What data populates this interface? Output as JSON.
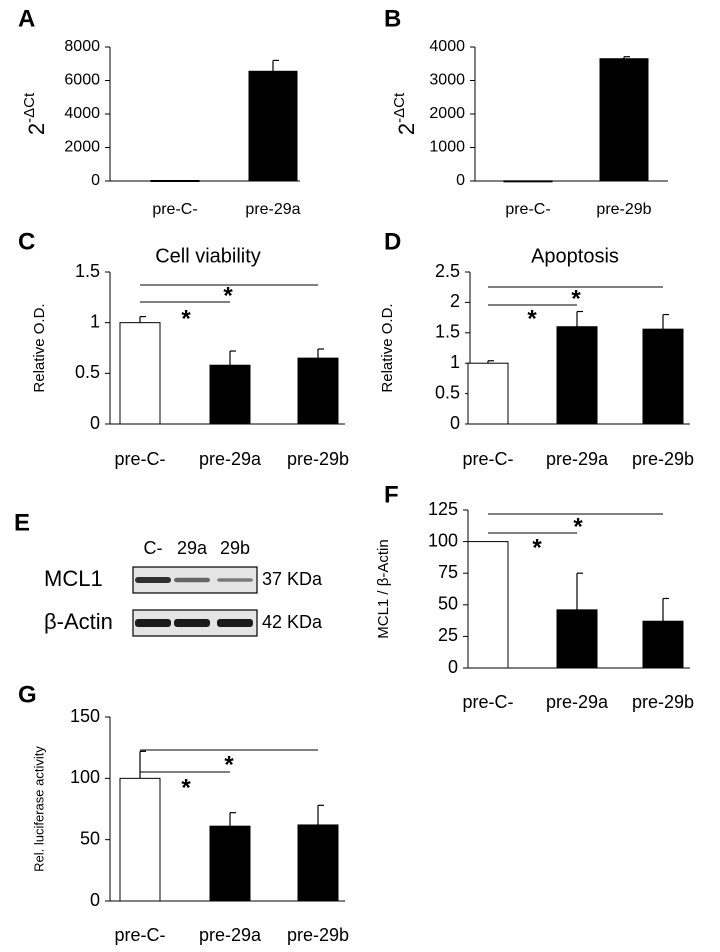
{
  "chart_data": [
    {
      "type": "bar",
      "panel_label": "A",
      "ylabel": "2",
      "ylabel_superscript": "-ΔCt",
      "categories": [
        "pre-C-",
        "pre-29a"
      ],
      "values": [
        30,
        6550
      ],
      "errors": [
        0,
        650
      ],
      "colors": [
        "#000000",
        "#000000"
      ],
      "ylim": [
        0,
        8000
      ],
      "yticks": [
        0,
        2000,
        4000,
        6000,
        8000
      ]
    },
    {
      "type": "bar",
      "panel_label": "B",
      "ylabel": "2",
      "ylabel_superscript": "-ΔCt",
      "categories": [
        "pre-C-",
        "pre-29b"
      ],
      "values": [
        5,
        3650
      ],
      "errors": [
        0,
        60
      ],
      "colors": [
        "#000000",
        "#000000"
      ],
      "ylim": [
        0,
        4000
      ],
      "yticks": [
        0,
        1000,
        2000,
        3000,
        4000
      ]
    },
    {
      "type": "bar",
      "panel_label": "C",
      "title": "Cell viability",
      "ylabel": "Relative O.D.",
      "categories": [
        "pre-C-",
        "pre-29a",
        "pre-29b"
      ],
      "values": [
        1.0,
        0.58,
        0.65
      ],
      "errors": [
        0.06,
        0.14,
        0.09
      ],
      "colors": [
        "#ffffff",
        "#000000",
        "#000000"
      ],
      "ylim": [
        0,
        1.5
      ],
      "yticks": [
        0,
        0.5,
        1,
        1.5
      ],
      "significance": [
        {
          "pair": [
            "pre-C-",
            "pre-29a"
          ],
          "label": "*"
        },
        {
          "pair": [
            "pre-C-",
            "pre-29b"
          ],
          "label": "*"
        }
      ]
    },
    {
      "type": "bar",
      "panel_label": "D",
      "title": "Apoptosis",
      "ylabel": "Relative O.D.",
      "categories": [
        "pre-C-",
        "pre-29a",
        "pre-29b"
      ],
      "values": [
        1.0,
        1.6,
        1.56
      ],
      "errors": [
        0.04,
        0.25,
        0.24
      ],
      "colors": [
        "#ffffff",
        "#000000",
        "#000000"
      ],
      "ylim": [
        0,
        2.5
      ],
      "yticks": [
        0,
        0.5,
        1,
        1.5,
        2,
        2.5
      ],
      "significance": [
        {
          "pair": [
            "pre-C-",
            "pre-29a"
          ],
          "label": "*"
        },
        {
          "pair": [
            "pre-C-",
            "pre-29b"
          ],
          "label": "*"
        }
      ]
    },
    {
      "type": "blot",
      "panel_label": "E",
      "lanes": [
        "C-",
        "29a",
        "29b"
      ],
      "rows": [
        {
          "name": "MCL1",
          "size": "37 KDa"
        },
        {
          "name": "β-Actin",
          "size": "42 KDa"
        }
      ]
    },
    {
      "type": "bar",
      "panel_label": "F",
      "ylabel": "MCL1 / β-Actin",
      "categories": [
        "pre-C-",
        "pre-29a",
        "pre-29b"
      ],
      "values": [
        100,
        46,
        37
      ],
      "errors": [
        0,
        29,
        18
      ],
      "colors": [
        "#ffffff",
        "#000000",
        "#000000"
      ],
      "ylim": [
        0,
        125
      ],
      "yticks": [
        0,
        25,
        50,
        75,
        100,
        125
      ],
      "significance": [
        {
          "pair": [
            "pre-C-",
            "pre-29a"
          ],
          "label": "*"
        },
        {
          "pair": [
            "pre-C-",
            "pre-29b"
          ],
          "label": "*"
        }
      ]
    },
    {
      "type": "bar",
      "panel_label": "G",
      "ylabel": "Rel. luciferase activity",
      "categories": [
        "pre-C-",
        "pre-29a",
        "pre-29b"
      ],
      "values": [
        100,
        61,
        62
      ],
      "errors": [
        22,
        11,
        16
      ],
      "colors": [
        "#ffffff",
        "#000000",
        "#000000"
      ],
      "ylim": [
        0,
        150
      ],
      "yticks": [
        0,
        50,
        100,
        150
      ],
      "significance": [
        {
          "pair": [
            "pre-C-",
            "pre-29a"
          ],
          "label": "*"
        },
        {
          "pair": [
            "pre-C-",
            "pre-29b"
          ],
          "label": "*"
        }
      ]
    }
  ]
}
